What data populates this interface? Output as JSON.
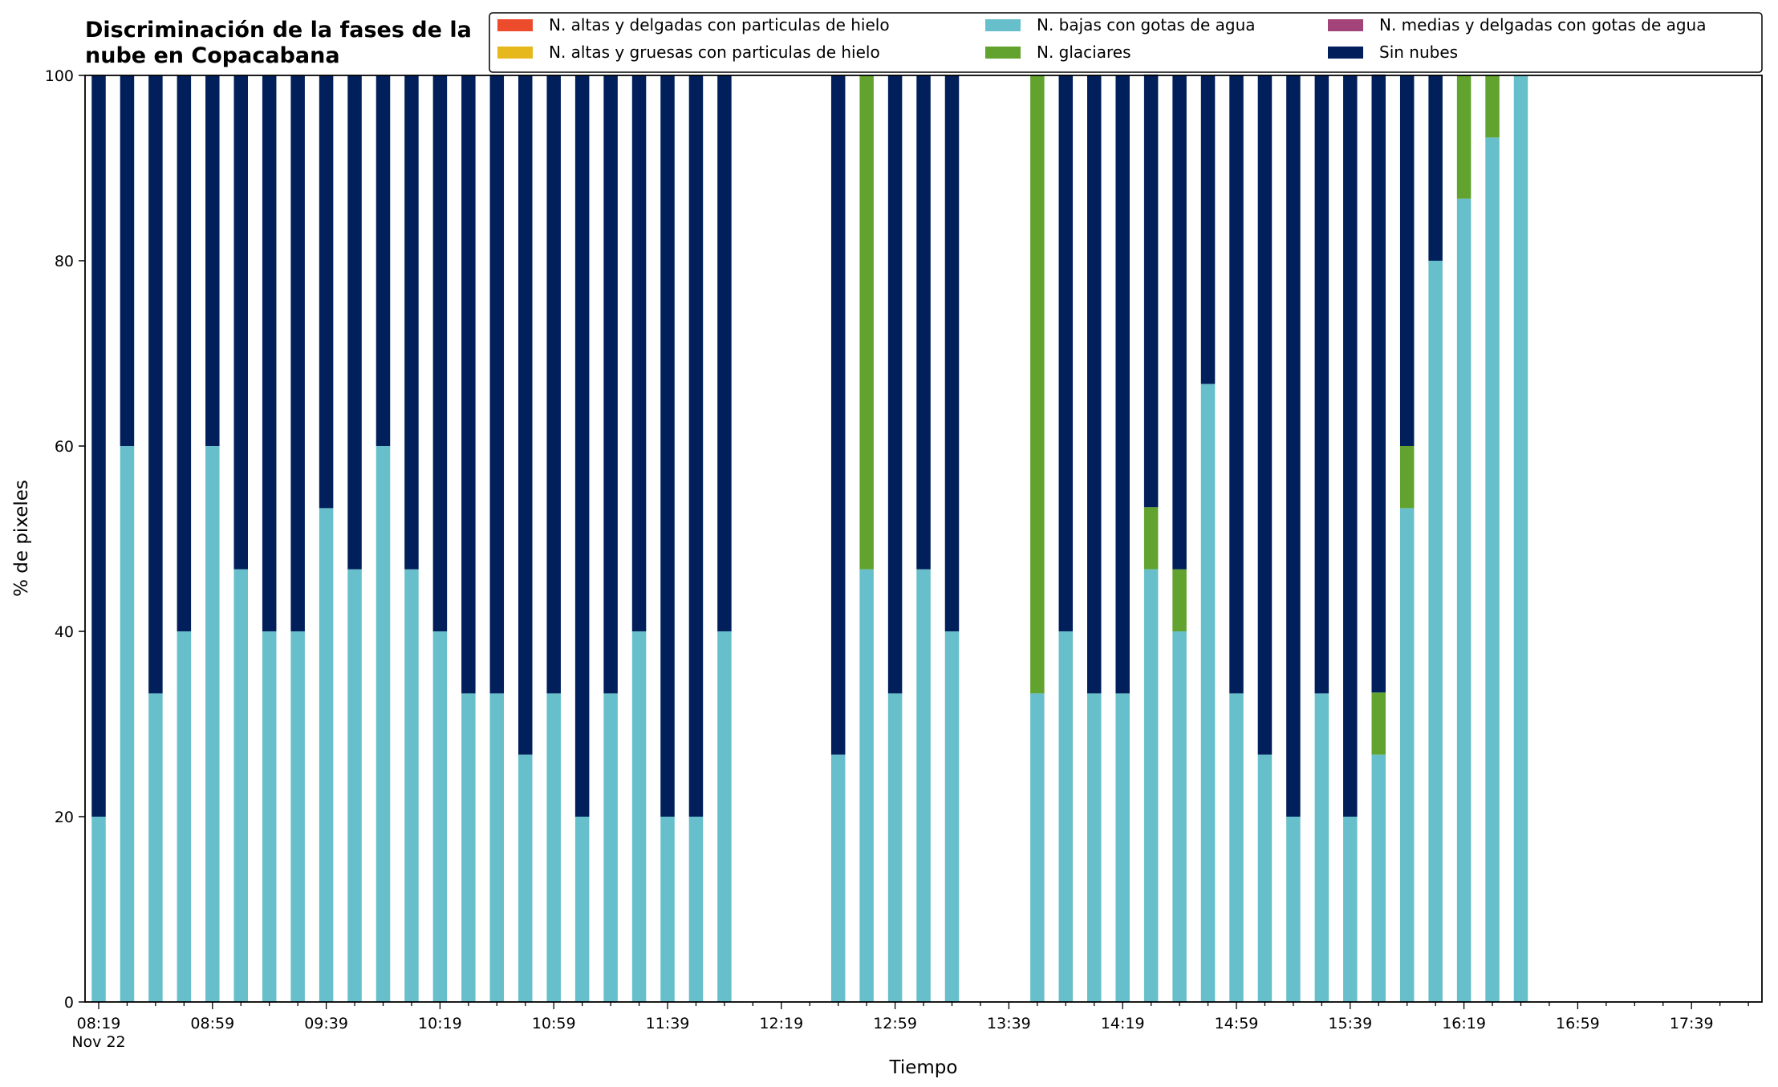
{
  "chart_data": {
    "type": "bar",
    "stacked": true,
    "title": [
      "Discriminación de la fases de la",
      "nube en Copacabana"
    ],
    "xlabel": "Tiempo",
    "ylabel": "% de pixeles",
    "ylim": [
      0,
      100
    ],
    "yticks": [
      0,
      20,
      40,
      60,
      80,
      100
    ],
    "legend_position": "top-right",
    "x_tick_labels": [
      "08:19",
      "08:59",
      "09:39",
      "10:19",
      "10:59",
      "11:39",
      "12:19",
      "12:59",
      "13:39",
      "14:19",
      "14:59",
      "15:39",
      "16:19",
      "16:59",
      "17:39"
    ],
    "x_date_label": "Nov 22",
    "x_major_tick_every": 4,
    "x_total_ticks": 59,
    "x_interval_minutes": 10,
    "categories": [
      "08:19",
      "08:29",
      "08:39",
      "08:49",
      "08:59",
      "09:09",
      "09:19",
      "09:29",
      "09:39",
      "09:49",
      "09:59",
      "10:09",
      "10:19",
      "10:29",
      "10:39",
      "10:49",
      "10:59",
      "11:09",
      "11:19",
      "11:29",
      "11:39",
      "11:49",
      "11:59",
      "12:09",
      "12:19",
      "12:29",
      "12:39",
      "12:49",
      "12:59",
      "13:09",
      "13:19",
      "13:29",
      "13:39",
      "13:49",
      "13:59",
      "14:09",
      "14:19",
      "14:29",
      "14:39",
      "14:49",
      "14:59",
      "15:09",
      "15:19",
      "15:29",
      "15:39",
      "15:49",
      "15:59",
      "16:09",
      "16:19",
      "16:29",
      "16:39",
      "16:49",
      "16:59",
      "17:09",
      "17:19",
      "17:29",
      "17:39",
      "17:49",
      "17:59"
    ],
    "series": [
      {
        "name": "N. altas y delgadas con particulas de hielo",
        "color": "#ec4b2c",
        "values": [
          0,
          0,
          0,
          0,
          0,
          0,
          0,
          0,
          0,
          0,
          0,
          0,
          0,
          0,
          0,
          0,
          0,
          0,
          0,
          0,
          0,
          0,
          0,
          0,
          0,
          0,
          0,
          0,
          0,
          0,
          0,
          0,
          0,
          0,
          0,
          0,
          0,
          0,
          0,
          0,
          0,
          0,
          0,
          0,
          0,
          0,
          0,
          0,
          0,
          0,
          0,
          0,
          0,
          0,
          0,
          0,
          0,
          0,
          0
        ]
      },
      {
        "name": "N. altas y gruesas con particulas de hielo",
        "color": "#e6b81c",
        "values": [
          0,
          0,
          0,
          0,
          0,
          0,
          0,
          0,
          0,
          0,
          0,
          0,
          0,
          0,
          0,
          0,
          0,
          0,
          0,
          0,
          0,
          0,
          0,
          0,
          0,
          0,
          0,
          0,
          0,
          0,
          0,
          0,
          0,
          0,
          0,
          0,
          0,
          0,
          0,
          0,
          0,
          0,
          0,
          0,
          0,
          0,
          0,
          0,
          0,
          0,
          0,
          0,
          0,
          0,
          0,
          0,
          0,
          0,
          0
        ]
      },
      {
        "name": "N. bajas con gotas de agua",
        "color": "#67bfcb",
        "values": [
          20,
          60,
          33.3,
          40,
          60,
          46.7,
          40,
          40,
          53.3,
          46.7,
          60,
          46.7,
          40,
          33.3,
          33.3,
          26.7,
          33.3,
          20,
          33.3,
          40,
          20,
          20,
          40,
          null,
          null,
          null,
          26.7,
          46.7,
          33.3,
          46.7,
          40,
          null,
          null,
          33.3,
          40,
          33.3,
          33.3,
          46.7,
          40,
          66.7,
          33.3,
          26.7,
          20,
          33.3,
          20,
          26.7,
          53.3,
          80,
          86.7,
          93.3,
          100,
          null,
          null,
          null,
          null,
          null,
          null,
          null,
          null
        ]
      },
      {
        "name": "N. glaciares",
        "color": "#62a22e",
        "values": [
          0,
          0,
          0,
          0,
          0,
          0,
          0,
          0,
          0,
          0,
          0,
          0,
          0,
          0,
          0,
          0,
          0,
          0,
          0,
          0,
          0,
          0,
          0,
          null,
          null,
          null,
          0,
          53.3,
          0,
          0,
          0,
          null,
          null,
          66.7,
          0,
          0,
          0,
          6.7,
          6.7,
          0,
          0,
          0,
          0,
          0,
          0,
          6.7,
          6.7,
          0,
          13.3,
          6.7,
          0,
          null,
          null,
          null,
          null,
          null,
          null,
          null,
          null
        ]
      },
      {
        "name": "N. medias y delgadas con gotas de agua",
        "color": "#a2437a",
        "values": [
          0,
          0,
          0,
          0,
          0,
          0,
          0,
          0,
          0,
          0,
          0,
          0,
          0,
          0,
          0,
          0,
          0,
          0,
          0,
          0,
          0,
          0,
          0,
          0,
          0,
          0,
          0,
          0,
          0,
          0,
          0,
          0,
          0,
          0,
          0,
          0,
          0,
          0,
          0,
          0,
          0,
          0,
          0,
          0,
          0,
          0,
          0,
          0,
          0,
          0,
          0,
          0,
          0,
          0,
          0,
          0,
          0,
          0,
          0
        ]
      },
      {
        "name": "Sin nubes",
        "color": "#011f5b",
        "values": [
          80,
          40,
          66.7,
          60,
          40,
          53.3,
          60,
          60,
          46.7,
          53.3,
          40,
          53.3,
          60,
          66.7,
          66.7,
          73.3,
          66.7,
          80,
          66.7,
          60,
          80,
          80,
          60,
          null,
          null,
          null,
          73.3,
          0,
          66.7,
          53.3,
          60,
          null,
          null,
          0,
          60,
          66.7,
          66.7,
          46.7,
          53.3,
          33.3,
          66.7,
          73.3,
          80,
          66.7,
          80,
          66.7,
          40,
          20,
          0,
          0,
          0,
          null,
          null,
          null,
          null,
          null,
          null,
          null,
          null
        ]
      }
    ]
  }
}
